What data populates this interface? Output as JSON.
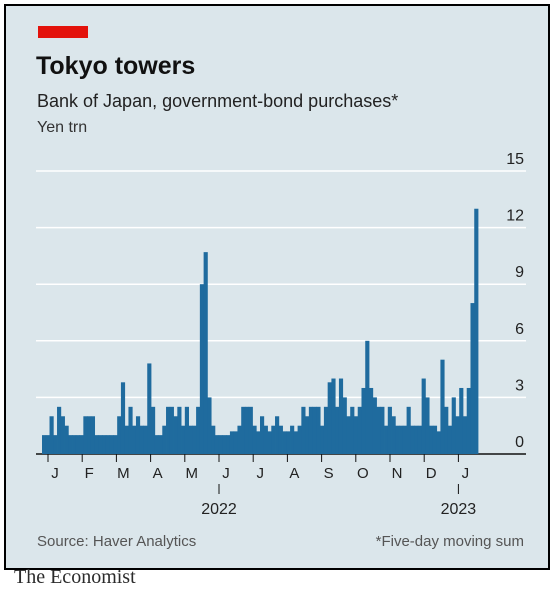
{
  "brand": "The Economist",
  "colors": {
    "tag": "#e3120b",
    "bar": "#1f6b9e",
    "background": "#dbe6eb",
    "grid": "#ffffff"
  },
  "header": {
    "title": "Tokyo towers",
    "subtitle": "Bank of Japan, government-bond purchases*",
    "unit": "Yen trn"
  },
  "footer": {
    "source": "Source: Haver Analytics",
    "note": "*Five-day moving sum"
  },
  "chart_data": {
    "type": "bar",
    "title": "Tokyo towers",
    "subtitle": "Bank of Japan, government-bond purchases*",
    "ylabel": "Yen trn",
    "ylim": [
      0,
      15
    ],
    "yticks": [
      0,
      3,
      6,
      9,
      12,
      15
    ],
    "grid": true,
    "y_axis_side": "right",
    "x_tick_labels": [
      "J",
      "F",
      "M",
      "A",
      "M",
      "J",
      "J",
      "A",
      "S",
      "O",
      "N",
      "D",
      "J"
    ],
    "year_labels": [
      {
        "label": "2022",
        "under_month": 5
      },
      {
        "label": "2023",
        "under_month": 12
      }
    ],
    "values": [
      1.0,
      1.0,
      2.0,
      1.0,
      2.5,
      2.0,
      1.5,
      1.0,
      1.0,
      1.0,
      1.0,
      2.0,
      2.0,
      2.0,
      1.0,
      1.0,
      1.0,
      1.0,
      1.0,
      1.0,
      2.0,
      3.8,
      1.5,
      2.5,
      1.5,
      2.0,
      1.5,
      1.5,
      4.8,
      2.5,
      1.0,
      1.0,
      1.5,
      2.5,
      2.5,
      2.0,
      2.5,
      1.5,
      2.5,
      1.5,
      1.5,
      2.5,
      9.0,
      10.7,
      3.0,
      1.5,
      1.0,
      1.0,
      1.0,
      1.0,
      1.2,
      1.2,
      1.5,
      2.5,
      2.5,
      2.5,
      1.5,
      1.2,
      2.0,
      1.5,
      1.2,
      1.5,
      2.0,
      1.5,
      1.2,
      1.2,
      1.5,
      1.2,
      1.5,
      2.5,
      2.0,
      2.5,
      2.5,
      2.5,
      1.5,
      2.5,
      3.8,
      4.0,
      2.5,
      4.0,
      3.0,
      2.0,
      2.5,
      2.0,
      2.5,
      3.5,
      6.0,
      3.5,
      3.0,
      2.5,
      2.5,
      1.5,
      2.5,
      2.0,
      1.5,
      1.5,
      1.5,
      2.5,
      1.5,
      1.5,
      1.5,
      4.0,
      3.0,
      1.5,
      1.5,
      1.2,
      5.0,
      2.5,
      1.5,
      3.0,
      2.0,
      3.5,
      2.0,
      3.5,
      8.0,
      13.0
    ]
  }
}
